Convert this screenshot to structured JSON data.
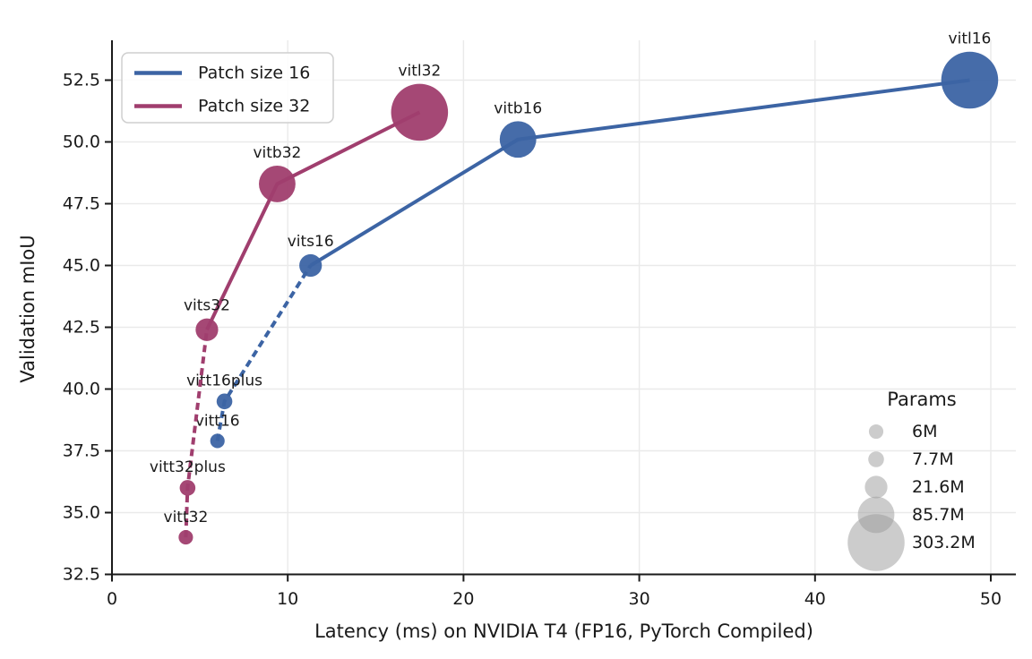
{
  "chart_data": {
    "type": "scatter",
    "title": "",
    "xlabel": "Latency (ms) on NVIDIA T4 (FP16, PyTorch Compiled)",
    "ylabel": "Validation mIoU",
    "x_ticks": [
      0,
      10,
      20,
      30,
      40,
      50
    ],
    "y_ticks": [
      32.5,
      35.0,
      37.5,
      40.0,
      42.5,
      45.0,
      47.5,
      50.0,
      52.5
    ],
    "xlim": [
      0,
      51.4
    ],
    "ylim": [
      32.5,
      54.1
    ],
    "grid": true,
    "legend_position": "upper left",
    "bubble_size_encodes": "params (millions)",
    "series": [
      {
        "name": "Patch size 16",
        "color": "#3c64a4",
        "dashed_segment_end_index": 2,
        "points": [
          {
            "label": "vitt16",
            "x": 6.0,
            "y": 37.9,
            "params_m": 6
          },
          {
            "label": "vitt16plus",
            "x": 6.4,
            "y": 39.5,
            "params_m": 7.7
          },
          {
            "label": "vits16",
            "x": 11.3,
            "y": 45.0,
            "params_m": 21.6
          },
          {
            "label": "vitb16",
            "x": 23.1,
            "y": 50.1,
            "params_m": 85.7
          },
          {
            "label": "vitl16",
            "x": 48.8,
            "y": 52.5,
            "params_m": 303.2
          }
        ]
      },
      {
        "name": "Patch size 32",
        "color": "#a03e6e",
        "dashed_segment_end_index": 2,
        "points": [
          {
            "label": "vitt32",
            "x": 4.2,
            "y": 34.0,
            "params_m": 6
          },
          {
            "label": "vitt32plus",
            "x": 4.3,
            "y": 36.0,
            "params_m": 7.7
          },
          {
            "label": "vits32",
            "x": 5.4,
            "y": 42.4,
            "params_m": 21.6
          },
          {
            "label": "vitb32",
            "x": 9.4,
            "y": 48.3,
            "params_m": 85.7
          },
          {
            "label": "vitl32",
            "x": 17.5,
            "y": 51.2,
            "params_m": 303.2
          }
        ]
      }
    ],
    "size_legend": {
      "title": "Params",
      "color": "#999999",
      "entries": [
        {
          "label": "6M",
          "params_m": 6
        },
        {
          "label": "7.7M",
          "params_m": 7.7
        },
        {
          "label": "21.6M",
          "params_m": 21.6
        },
        {
          "label": "85.7M",
          "params_m": 85.7
        },
        {
          "label": "303.2M",
          "params_m": 303.2
        }
      ]
    },
    "colors": {
      "grid": "#eaeaea",
      "spine": "#1a1a1a",
      "text": "#1a1a1a",
      "legend_border": "#cfcfcf"
    }
  }
}
